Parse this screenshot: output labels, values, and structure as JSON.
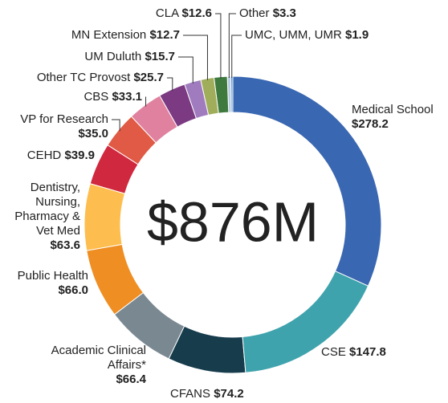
{
  "chart_data": {
    "type": "donut",
    "center_label": "$876M",
    "categories": [
      "Medical School",
      "CSE",
      "CFANS",
      "Academic Clinical Affairs*",
      "Public Health",
      "Dentistry, Nursing, Pharmacy & Vet Med",
      "CEHD",
      "VP for Research",
      "CBS",
      "Other TC Provost",
      "UM Duluth",
      "MN Extension",
      "CLA",
      "Other",
      "UMC, UMM, UMR"
    ],
    "values": [
      278.2,
      147.8,
      74.2,
      66.4,
      66.0,
      63.6,
      39.9,
      35.0,
      33.1,
      25.7,
      15.7,
      12.7,
      12.6,
      3.3,
      1.9
    ],
    "value_labels": [
      "$278.2",
      "$147.8",
      "$74.2",
      "$66.4",
      "$66.0",
      "$63.6",
      "$39.9",
      "$35.0",
      "$33.1",
      "$25.7",
      "$15.7",
      "$12.7",
      "$12.6",
      "$3.3",
      "$1.9"
    ],
    "colors": [
      "#3a67b1",
      "#3fa3ad",
      "#173c4c",
      "#7a8891",
      "#ef8e22",
      "#fdbe4f",
      "#d0283e",
      "#e05a45",
      "#e0829f",
      "#7b3a82",
      "#a07cbf",
      "#a0ad5a",
      "#3e7a3e",
      "#b8cbe0",
      "#4f8fd0"
    ]
  }
}
